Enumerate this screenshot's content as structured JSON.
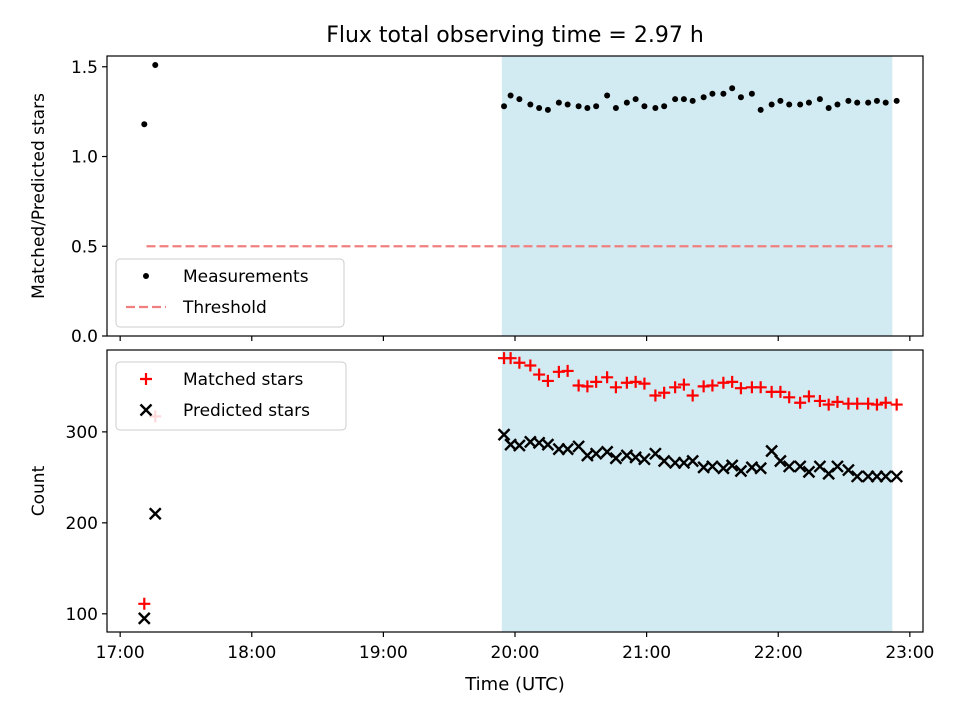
{
  "chart_data": [
    {
      "type": "scatter",
      "title": "Flux total observing time = 2.97 h",
      "xlabel": "",
      "ylabel": "Matched/Predicted stars",
      "ylim": [
        0,
        1.56
      ],
      "yticks": [
        "0.0",
        "0.5",
        "1.0",
        "1.5"
      ],
      "xlim": [
        "16:54",
        "23:06"
      ],
      "xticks": [
        "17:00",
        "18:00",
        "19:00",
        "20:00",
        "21:00",
        "22:00",
        "23:00"
      ],
      "show_xticklabels": false,
      "shaded_interval": {
        "start": "19:54",
        "end": "22:52",
        "color": "#add8e6"
      },
      "threshold": {
        "name": "Threshold",
        "y": 0.5,
        "x_start": "17:12",
        "x_end": "22:52",
        "color": "#f08080",
        "style": "dashed"
      },
      "legend": {
        "position": "lower-left",
        "entries": [
          "Measurements",
          "Threshold"
        ]
      },
      "series": [
        {
          "name": "Measurements",
          "marker": "dot",
          "color": "#000000",
          "x": [
            "17:11",
            "17:16",
            "19:55",
            "19:58",
            "20:02",
            "20:07",
            "20:11",
            "20:15",
            "20:20",
            "20:24",
            "20:29",
            "20:33",
            "20:37",
            "20:42",
            "20:46",
            "20:51",
            "20:55",
            "20:59",
            "21:04",
            "21:08",
            "21:13",
            "21:17",
            "21:21",
            "21:26",
            "21:30",
            "21:35",
            "21:39",
            "21:43",
            "21:48",
            "21:52",
            "21:57",
            "22:01",
            "22:05",
            "22:10",
            "22:14",
            "22:19",
            "22:23",
            "22:27",
            "22:32",
            "22:36",
            "22:41",
            "22:45",
            "22:49",
            "22:54"
          ],
          "y": [
            1.18,
            1.51,
            1.28,
            1.34,
            1.32,
            1.29,
            1.27,
            1.26,
            1.3,
            1.29,
            1.28,
            1.27,
            1.28,
            1.34,
            1.27,
            1.3,
            1.32,
            1.28,
            1.27,
            1.28,
            1.32,
            1.32,
            1.31,
            1.33,
            1.35,
            1.35,
            1.38,
            1.33,
            1.35,
            1.26,
            1.29,
            1.31,
            1.29,
            1.29,
            1.3,
            1.32,
            1.27,
            1.29,
            1.31,
            1.3,
            1.3,
            1.31,
            1.3,
            1.31
          ]
        }
      ]
    },
    {
      "type": "scatter",
      "title": "",
      "xlabel": "Time (UTC)",
      "ylabel": "Count",
      "ylim": [
        80,
        390
      ],
      "yticks": [
        "100",
        "200",
        "300"
      ],
      "xlim": [
        "16:54",
        "23:06"
      ],
      "xticks": [
        "17:00",
        "18:00",
        "19:00",
        "20:00",
        "21:00",
        "22:00",
        "23:00"
      ],
      "shaded_interval": {
        "start": "19:54",
        "end": "22:52",
        "color": "#add8e6"
      },
      "legend": {
        "position": "upper-left",
        "entries": [
          "Matched stars",
          "Predicted stars"
        ]
      },
      "series": [
        {
          "name": "Matched stars",
          "marker": "plus",
          "color": "#ff0000",
          "x": [
            "17:11",
            "17:16",
            "19:55",
            "19:58",
            "20:02",
            "20:07",
            "20:11",
            "20:15",
            "20:20",
            "20:24",
            "20:29",
            "20:33",
            "20:37",
            "20:42",
            "20:46",
            "20:51",
            "20:55",
            "20:59",
            "21:04",
            "21:08",
            "21:13",
            "21:17",
            "21:21",
            "21:26",
            "21:30",
            "21:35",
            "21:39",
            "21:43",
            "21:48",
            "21:52",
            "21:57",
            "22:01",
            "22:05",
            "22:10",
            "22:14",
            "22:19",
            "22:23",
            "22:27",
            "22:32",
            "22:36",
            "22:41",
            "22:45",
            "22:49",
            "22:54"
          ],
          "y": [
            111,
            317,
            381,
            381,
            376,
            373,
            363,
            356,
            366,
            367,
            351,
            350,
            355,
            360,
            349,
            354,
            355,
            353,
            340,
            343,
            349,
            352,
            340,
            350,
            351,
            354,
            355,
            348,
            349,
            349,
            344,
            344,
            338,
            332,
            339,
            334,
            330,
            333,
            331,
            331,
            331,
            330,
            332,
            330
          ]
        },
        {
          "name": "Predicted stars",
          "marker": "x",
          "color": "#000000",
          "x": [
            "17:11",
            "17:16",
            "19:55",
            "19:58",
            "20:02",
            "20:07",
            "20:11",
            "20:15",
            "20:20",
            "20:24",
            "20:29",
            "20:33",
            "20:37",
            "20:42",
            "20:46",
            "20:51",
            "20:55",
            "20:59",
            "21:04",
            "21:08",
            "21:13",
            "21:17",
            "21:21",
            "21:26",
            "21:30",
            "21:35",
            "21:39",
            "21:43",
            "21:48",
            "21:52",
            "21:57",
            "22:01",
            "22:05",
            "22:10",
            "22:14",
            "22:19",
            "22:23",
            "22:27",
            "22:32",
            "22:36",
            "22:41",
            "22:45",
            "22:49",
            "22:54"
          ],
          "y": [
            95,
            210,
            297,
            286,
            285,
            289,
            288,
            286,
            281,
            281,
            284,
            274,
            276,
            278,
            271,
            274,
            272,
            270,
            276,
            268,
            266,
            266,
            268,
            261,
            262,
            260,
            263,
            257,
            261,
            260,
            279,
            268,
            262,
            262,
            256,
            262,
            254,
            262,
            258,
            251,
            251,
            251,
            251,
            251
          ]
        }
      ]
    }
  ]
}
